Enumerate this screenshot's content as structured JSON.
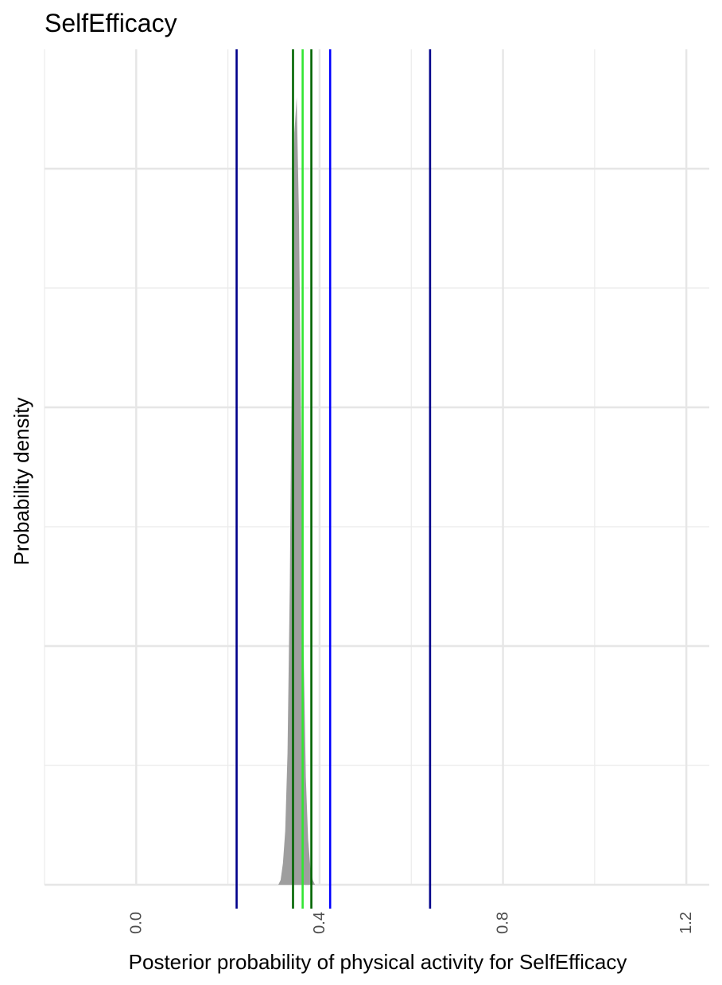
{
  "chart_data": {
    "type": "area",
    "title": "SelfEfficacy",
    "xlabel": "Posterior probability of physical activity for SelfEfficacy",
    "ylabel": "Probability density",
    "xlim": [
      -0.2,
      1.25
    ],
    "ylim": [
      0,
      700
    ],
    "x_ticks": [
      0.0,
      0.4,
      0.8,
      1.2
    ],
    "x_tick_labels": [
      "0.0",
      "0.4",
      "0.8",
      "1.2"
    ],
    "x_minor_ticks": [
      -0.2,
      0.2,
      0.6,
      1.0
    ],
    "y_major_gridlines": [
      0,
      200,
      400,
      600
    ],
    "y_minor_gridlines": [
      100,
      300,
      500
    ],
    "y_tick_labels_shown": false,
    "grid": true,
    "density": {
      "fill_color": "#9e9e9e",
      "x": [
        0.31,
        0.315,
        0.32,
        0.325,
        0.33,
        0.335,
        0.34,
        0.345,
        0.35,
        0.355,
        0.36,
        0.365,
        0.37,
        0.375,
        0.38,
        0.385,
        0.39
      ],
      "y": [
        0,
        4,
        18,
        45,
        110,
        250,
        470,
        630,
        660,
        560,
        380,
        200,
        90,
        38,
        14,
        4,
        0
      ]
    },
    "vertical_lines": [
      {
        "x": 0.219,
        "color": "#00008b"
      },
      {
        "x": 0.342,
        "color": "#006400"
      },
      {
        "x": 0.363,
        "color": "#32e632"
      },
      {
        "x": 0.382,
        "color": "#006400"
      },
      {
        "x": 0.423,
        "color": "#0000ff"
      },
      {
        "x": 0.641,
        "color": "#00008b"
      }
    ]
  }
}
